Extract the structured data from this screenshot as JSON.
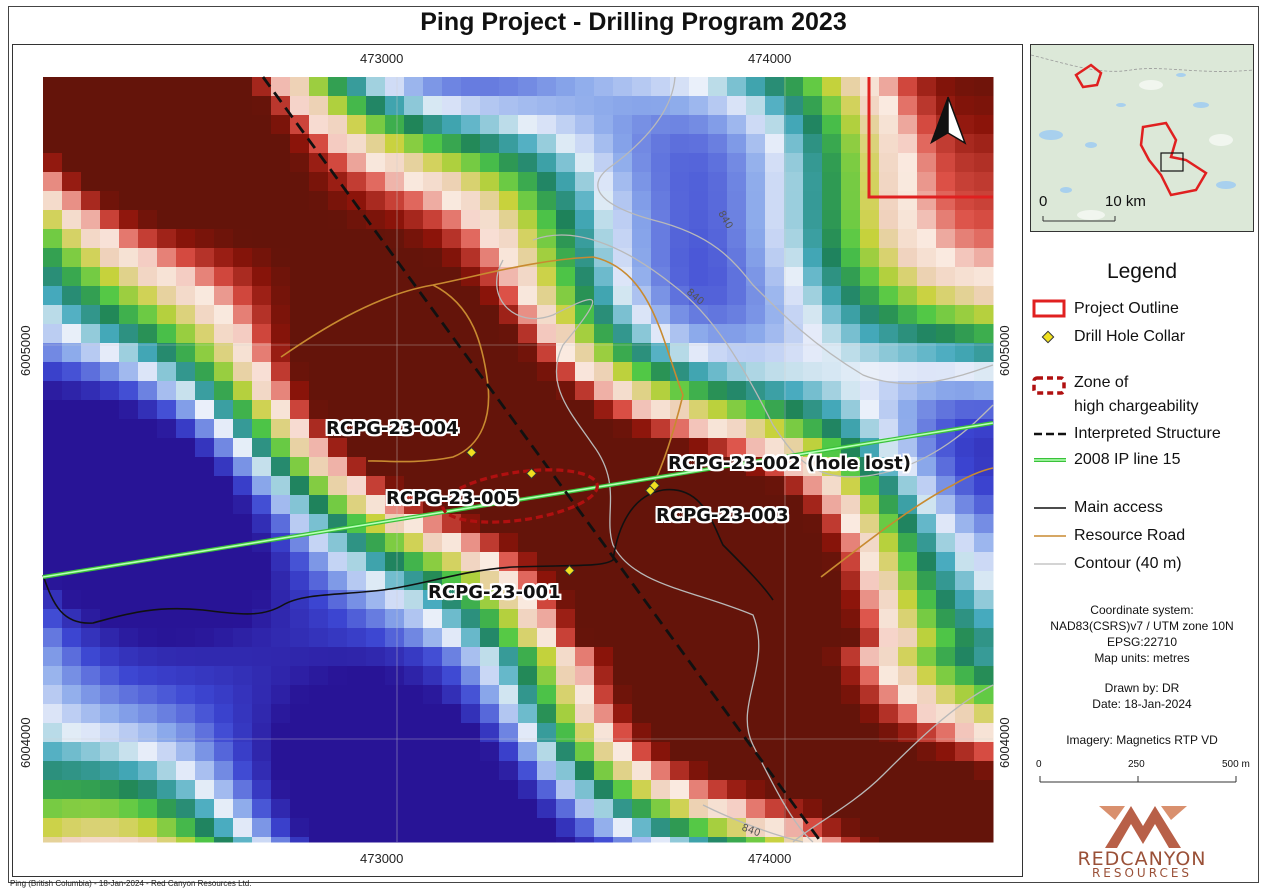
{
  "title": "Ping Project - Drilling Program 2023",
  "map": {
    "x_ticks": [
      "473000",
      "474000"
    ],
    "y_ticks": [
      "6005000",
      "6004000"
    ],
    "contour_labels": [
      "840",
      "840",
      "840"
    ],
    "drill_holes": [
      {
        "id": "RCPG-23-001",
        "label": "RCPG-23-001"
      },
      {
        "id": "RCPG-23-002",
        "label": "RCPG-23-002 (hole lost)"
      },
      {
        "id": "RCPG-23-003",
        "label": "RCPG-23-003"
      },
      {
        "id": "RCPG-23-004",
        "label": "RCPG-23-004"
      },
      {
        "id": "RCPG-23-005",
        "label": "RCPG-23-005"
      }
    ],
    "imagery": "magnetics-rtp-vd-raster",
    "north_arrow": "north-arrow-icon"
  },
  "inset": {
    "scale_start": "0",
    "scale_end": "10 km"
  },
  "legend": {
    "title": "Legend",
    "items": [
      {
        "label": "Project Outline",
        "color": "#e02020"
      },
      {
        "label": "Drill Hole Collar",
        "color": "#f0e020"
      },
      {
        "label": "Zone of",
        "label2": "high chargeability",
        "color": "#b01010"
      },
      {
        "label": "Interpreted Structure",
        "color": "#111111"
      },
      {
        "label": "2008 IP line 15",
        "color": "#7dfc7d"
      },
      {
        "label": "Main access",
        "color": "#111111"
      },
      {
        "label": "Resource Road",
        "color": "#c88a30"
      },
      {
        "label": "Contour (40 m)",
        "color": "#bbbbbb"
      }
    ]
  },
  "info": {
    "coord_lines": [
      "Coordinate system:",
      "NAD83(CSRS)v7 / UTM zone 10N",
      "EPSG:22710",
      "Map units: metres"
    ],
    "drawn_by": "Drawn by: DR",
    "date": "Date: 18-Jan-2024",
    "imagery": "Imagery: Magnetics RTP VD"
  },
  "scale_bar": {
    "labels": [
      "0",
      "250",
      "500 m"
    ]
  },
  "logo": {
    "line1": "REDCANYON",
    "line2": "RESOURCES"
  },
  "footer": "Ping (British Columbia) - 18-Jan-2024 - Red Canyon Resources Ltd."
}
